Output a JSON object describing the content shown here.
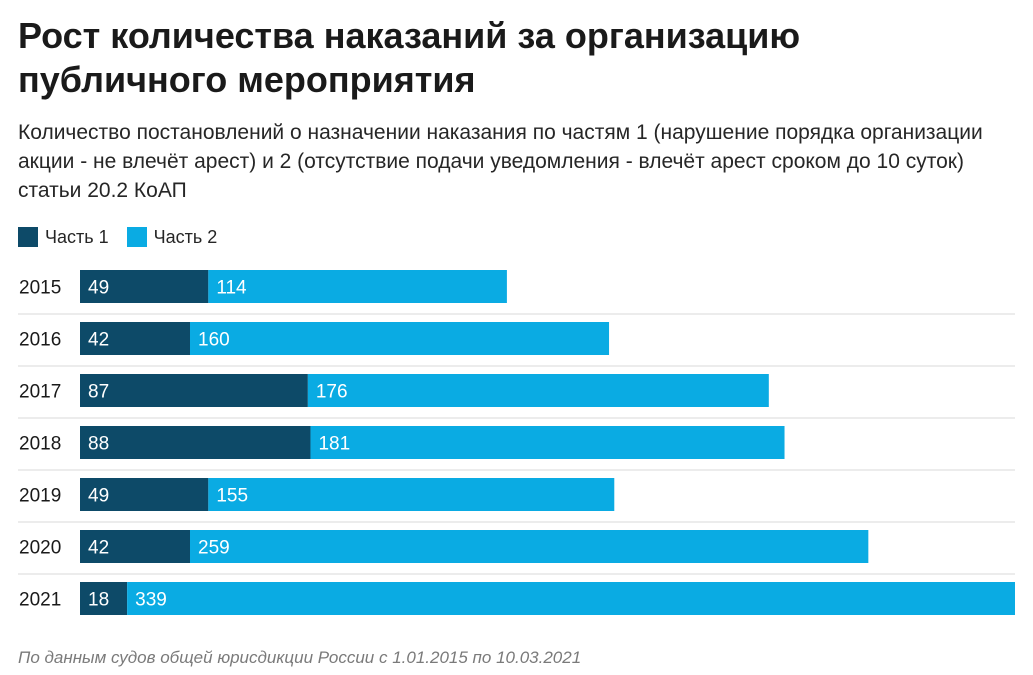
{
  "title": "Рост количества наказаний за организацию публичного мероприятия",
  "subtitle": "Количество постановлений о назначении наказания по частям 1 (нарушение порядка организации акции - не влечёт арест) и 2 (отсутствие подачи уведомления - влечёт арест сроком до 10 суток) статьи 20.2 КоАП",
  "footnote": "По данным судов общей юрисдикции России с 1.01.2015 по 10.03.2021",
  "colors": {
    "part1": "#0d4a68",
    "part2": "#0aabe3",
    "row_divider": "#d9d9d9"
  },
  "chart_data": {
    "type": "bar",
    "orientation": "horizontal",
    "stacked": true,
    "categories": [
      "2015",
      "2016",
      "2017",
      "2018",
      "2019",
      "2020",
      "2021"
    ],
    "series": [
      {
        "name": "Часть 1",
        "values": [
          49,
          42,
          87,
          88,
          49,
          42,
          18
        ]
      },
      {
        "name": "Часть 2",
        "values": [
          114,
          160,
          176,
          181,
          155,
          259,
          339
        ]
      }
    ],
    "xlim": [
      0,
      357
    ],
    "legend": "top-left",
    "data_labels": true,
    "grid": false
  }
}
